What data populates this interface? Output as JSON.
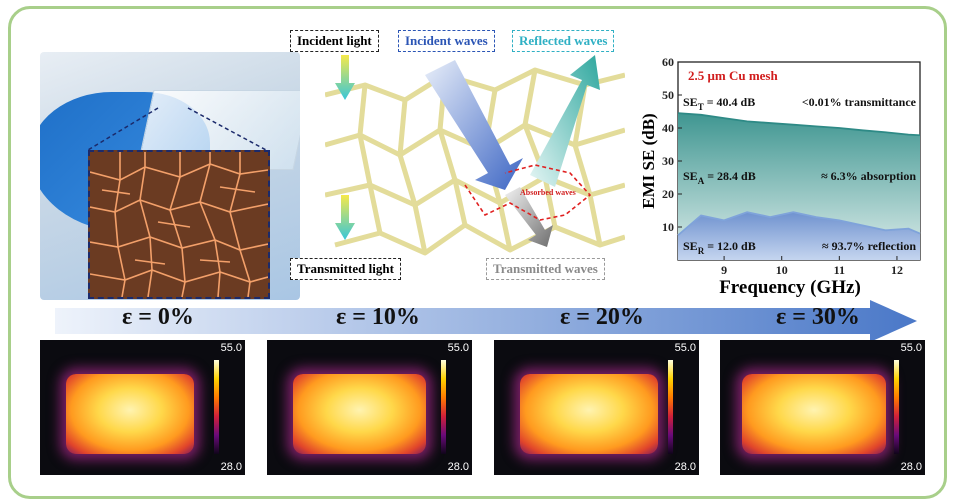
{
  "photo": {
    "description_icon": "glove-holding-film"
  },
  "scheme": {
    "incident_light": "Incident light",
    "incident_waves": "Incident waves",
    "reflected_waves": "Reflected waves",
    "transmitted_light": "Transmitted light",
    "transmitted_waves": "Transmitted waves",
    "absorbed_waves": "Absorbed waves"
  },
  "chart_data": {
    "type": "area",
    "title": "",
    "annotation_title": "2.5 μm Cu mesh",
    "xlabel": "Frequency (GHz)",
    "ylabel": "EMI SE (dB)",
    "xlim": [
      8.2,
      12.4
    ],
    "ylim": [
      0,
      60
    ],
    "xticks": [
      9,
      10,
      11,
      12
    ],
    "yticks": [
      10,
      20,
      30,
      40,
      50,
      60
    ],
    "x": [
      8.2,
      8.6,
      9.0,
      9.4,
      9.8,
      10.2,
      10.6,
      11.0,
      11.4,
      11.8,
      12.2,
      12.4
    ],
    "series": [
      {
        "values": [
          44.5,
          44.0,
          43.0,
          42.0,
          41.5,
          41.0,
          40.5,
          40.0,
          39.3,
          38.7,
          38.0,
          37.8
        ],
        "color": "#2e8a86"
      },
      {
        "values": [
          7.5,
          13.5,
          12.0,
          14.5,
          13.0,
          14.5,
          13.0,
          12.0,
          10.5,
          9.0,
          9.5,
          8.0
        ],
        "color": "#7fa3da"
      }
    ],
    "annotations": [
      {
        "label": "SE",
        "sub": "T",
        "value": "= 40.4 dB",
        "note": "<0.01%  transmittance"
      },
      {
        "label": "SE",
        "sub": "A",
        "value": "= 28.4 dB",
        "note": "≈ 6.3% absorption"
      },
      {
        "label": "SE",
        "sub": "R",
        "value": "= 12.0 dB",
        "note": "≈ 93.7% reflection"
      }
    ],
    "grid": false
  },
  "strain": [
    {
      "label": "ε = 0%"
    },
    {
      "label": "ε = 10%"
    },
    {
      "label": "ε = 20%"
    },
    {
      "label": "ε = 30%"
    }
  ],
  "thermal": {
    "max": "55.0",
    "min": "28.0"
  },
  "colors": {
    "border": "#a8cf8a",
    "arrow": "#4a78c8",
    "teal": "#2e8a86",
    "blue_fill": "#7fa3da"
  }
}
